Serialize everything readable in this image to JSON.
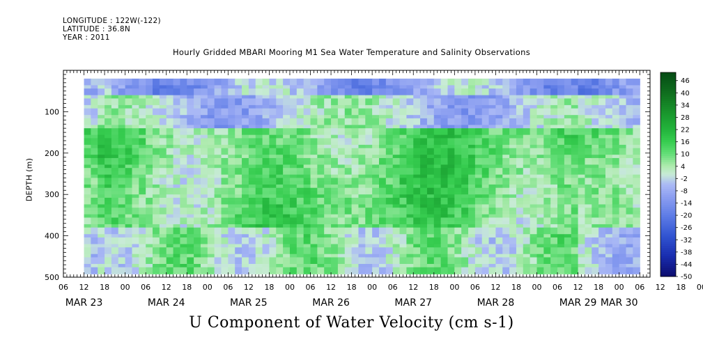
{
  "header": {
    "longitude": "LONGITUDE : 122W(-122)",
    "latitude": "LATITUDE : 36.8N",
    "year": "YEAR : 2011"
  },
  "chart_data": {
    "type": "heatmap",
    "title": "Hourly Gridded MBARI Mooring M1 Sea Water Temperature and Salinity Observations",
    "xlabel": "U Component of Water Velocity (cm s-1)",
    "ylabel": "DEPTH (m)",
    "x_axis": {
      "start": "MAR 23 06:00",
      "end": "MAR 30 09:00",
      "hour_ticks": [
        "06",
        "12",
        "18",
        "00",
        "06",
        "12",
        "18",
        "00",
        "06",
        "12",
        "18",
        "00",
        "06",
        "12",
        "18",
        "00",
        "06",
        "12",
        "18",
        "00",
        "06",
        "12",
        "18",
        "00",
        "06",
        "12",
        "18",
        "00",
        "06",
        "12",
        "18",
        "00",
        "06"
      ],
      "date_labels": [
        {
          "label": "MAR 23",
          "at": "MAR 23 12:00"
        },
        {
          "label": "MAR 24",
          "at": "MAR 24 12:00"
        },
        {
          "label": "MAR 25",
          "at": "MAR 25 12:00"
        },
        {
          "label": "MAR 26",
          "at": "MAR 26 12:00"
        },
        {
          "label": "MAR 27",
          "at": "MAR 27 12:00"
        },
        {
          "label": "MAR 28",
          "at": "MAR 28 12:00"
        },
        {
          "label": "MAR 29",
          "at": "MAR 29 12:00"
        },
        {
          "label": "MAR 30",
          "at": "MAR 30 00:00"
        }
      ]
    },
    "y_axis": {
      "range": [
        500,
        0
      ],
      "reversed": true,
      "ticks": [
        "100",
        "200",
        "300",
        "400",
        "500"
      ],
      "data_range_m": [
        20,
        485
      ]
    },
    "colorbar": {
      "levels": [
        "46",
        "40",
        "34",
        "28",
        "22",
        "16",
        "10",
        "4",
        "-2",
        "-8",
        "-14",
        "-20",
        "-26",
        "-32",
        "-38",
        "-44",
        "-50"
      ],
      "range": [
        -50,
        50
      ]
    },
    "data_coverage": {
      "first_data": "MAR 23 12:00",
      "last_data": "MAR 30 06:00"
    },
    "pattern_summary": {
      "surface_layer": "mostly -10 to 0 (blue/lavender) with green patches",
      "mid_depth_150_400m": "mostly 5 to 20 (green)",
      "deep_layer": "mixed green and lavender"
    }
  }
}
